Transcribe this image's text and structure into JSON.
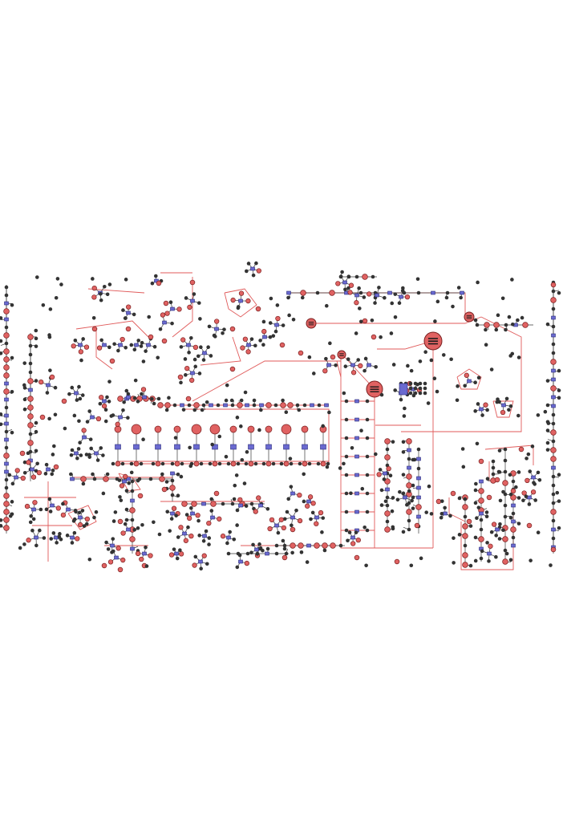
{
  "diagram": {
    "kind": "metabolic-pathway-network",
    "colors": {
      "background": "#ffffff",
      "edge_main": "#e05a5a",
      "edge_minor": "#3a3a3a",
      "metabolite_fill": "#e06262",
      "metabolite_stroke": "#7a1f1f",
      "species_fill": "#333333",
      "reaction_fill": "#6a6ad0",
      "reaction_stroke": "#2a2a7a"
    },
    "node_types": [
      "metabolite",
      "species",
      "reaction"
    ]
  }
}
